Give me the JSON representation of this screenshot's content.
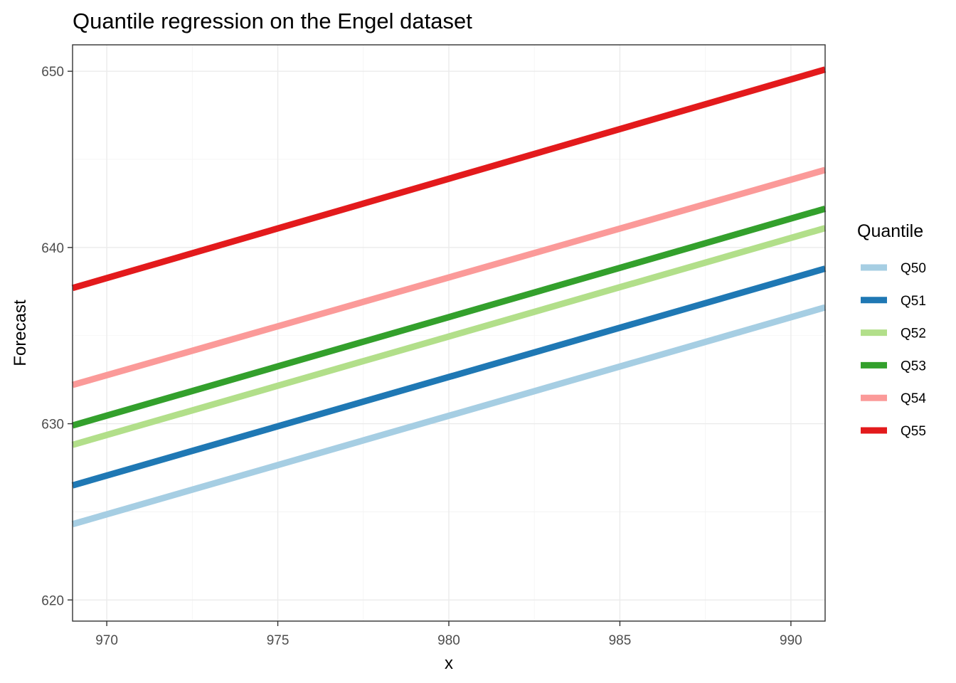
{
  "chart_data": {
    "type": "line",
    "title": "Quantile regression on the Engel dataset",
    "xlabel": "x",
    "ylabel": "Forecast",
    "xlim": [
      969,
      991
    ],
    "ylim": [
      618.8,
      651.5
    ],
    "x_ticks": [
      970,
      975,
      980,
      985,
      990
    ],
    "x_tick_labels": [
      "970",
      "975",
      "980",
      "985",
      "990"
    ],
    "y_ticks": [
      620,
      630,
      640,
      650
    ],
    "y_tick_labels": [
      "620",
      "630",
      "640",
      "650"
    ],
    "grid": true,
    "legend": {
      "title": "Quantile",
      "position": "right"
    },
    "series": [
      {
        "name": "Q50",
        "color": "#a6cee3",
        "x": [
          969,
          991
        ],
        "y": [
          624.3,
          636.6
        ]
      },
      {
        "name": "Q51",
        "color": "#1f78b4",
        "x": [
          969,
          991
        ],
        "y": [
          626.5,
          638.8
        ]
      },
      {
        "name": "Q52",
        "color": "#b2df8a",
        "x": [
          969,
          991
        ],
        "y": [
          628.8,
          641.1
        ]
      },
      {
        "name": "Q53",
        "color": "#33a02c",
        "x": [
          969,
          991
        ],
        "y": [
          629.9,
          642.2
        ]
      },
      {
        "name": "Q54",
        "color": "#fb9a99",
        "x": [
          969,
          991
        ],
        "y": [
          632.2,
          644.4
        ]
      },
      {
        "name": "Q55",
        "color": "#e31a1c",
        "x": [
          969,
          991
        ],
        "y": [
          637.7,
          650.1
        ]
      }
    ]
  }
}
